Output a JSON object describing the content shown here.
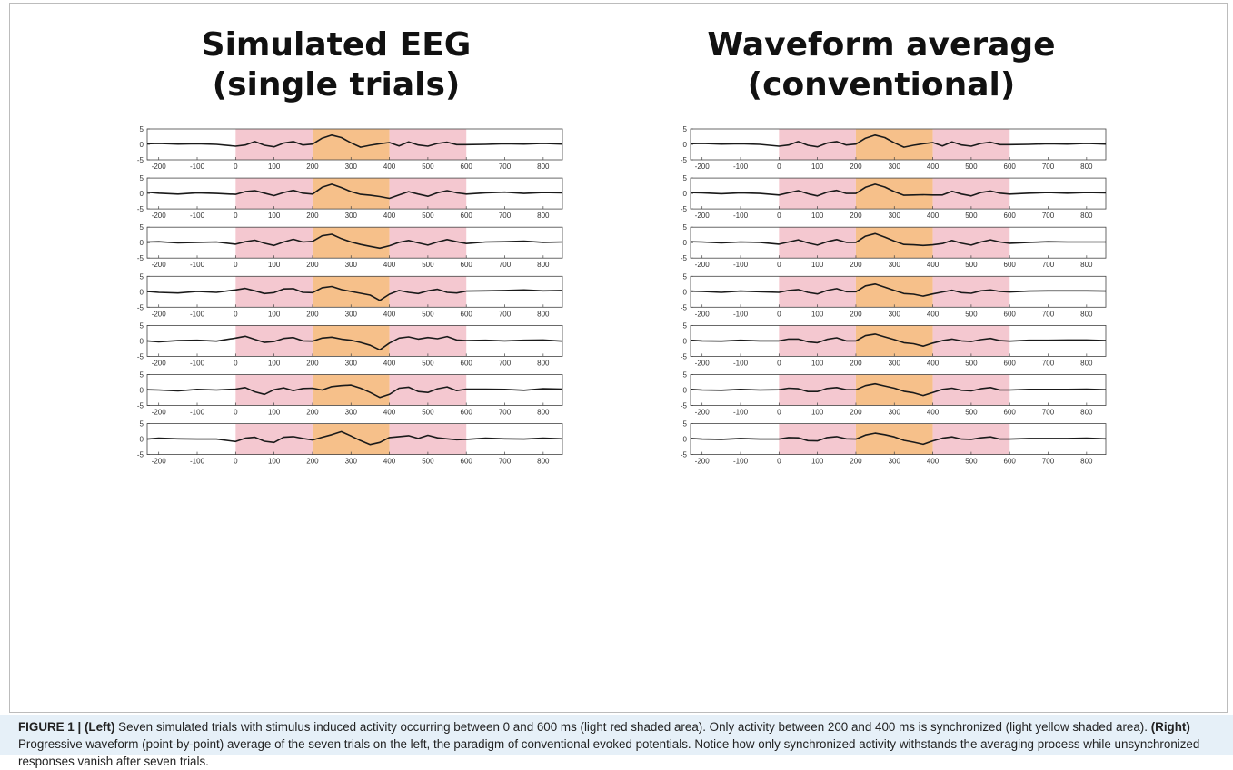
{
  "panels": [
    {
      "id": "left",
      "title_line1": "Simulated EEG",
      "title_line2": "(single trials)"
    },
    {
      "id": "right",
      "title_line1": "Waveform average",
      "title_line2": "(conventional)"
    }
  ],
  "chart_data": [
    {
      "type": "line",
      "title": "Simulated EEG (single trials)",
      "subplots": 7,
      "xlim": [
        -230,
        850
      ],
      "ylim": [
        -5,
        5
      ],
      "x_ticks": [
        -200,
        -100,
        0,
        100,
        200,
        300,
        400,
        500,
        600,
        700,
        800
      ],
      "y_ticks": [
        -5,
        0,
        5
      ],
      "shaded_regions": [
        {
          "from": 0,
          "to": 200,
          "color": "#f4c8d0"
        },
        {
          "from": 200,
          "to": 400,
          "color": "#f6c08a"
        },
        {
          "from": 400,
          "to": 600,
          "color": "#f4c8d0"
        }
      ],
      "x": [
        -230,
        -200,
        -150,
        -100,
        -50,
        0,
        25,
        50,
        75,
        100,
        125,
        150,
        175,
        200,
        225,
        250,
        275,
        300,
        325,
        350,
        375,
        400,
        425,
        450,
        475,
        500,
        525,
        550,
        575,
        600,
        650,
        700,
        750,
        800,
        850
      ],
      "series": [
        {
          "values": [
            0.2,
            0.3,
            0.1,
            0.2,
            0.0,
            -0.6,
            -0.2,
            0.9,
            -0.3,
            -0.8,
            0.4,
            0.9,
            -0.2,
            0.1,
            2.0,
            3.0,
            2.2,
            0.5,
            -0.9,
            -0.3,
            0.2,
            0.6,
            -0.5,
            0.8,
            -0.2,
            -0.6,
            0.3,
            0.7,
            -0.1,
            -0.1,
            0.0,
            0.2,
            0.1,
            0.3,
            0.1
          ]
        },
        {
          "values": [
            0.4,
            0.1,
            -0.2,
            0.2,
            0.0,
            -0.3,
            0.6,
            0.9,
            0.1,
            -0.7,
            0.3,
            1.0,
            0.1,
            -0.2,
            2.0,
            3.0,
            1.9,
            0.6,
            -0.3,
            -0.6,
            -1.0,
            -1.6,
            -0.5,
            0.6,
            -0.2,
            -0.9,
            0.2,
            0.9,
            0.2,
            -0.2,
            0.2,
            0.4,
            0.0,
            0.3,
            0.2
          ]
        },
        {
          "values": [
            0.2,
            0.3,
            -0.1,
            0.1,
            0.2,
            -0.5,
            0.3,
            0.8,
            -0.2,
            -0.9,
            0.2,
            1.1,
            0.2,
            0.4,
            2.2,
            2.7,
            1.3,
            0.2,
            -0.6,
            -1.2,
            -1.8,
            -1.0,
            0.1,
            0.7,
            -0.1,
            -0.8,
            0.2,
            1.0,
            0.3,
            -0.3,
            0.2,
            0.3,
            0.5,
            0.1,
            0.2
          ]
        },
        {
          "values": [
            0.1,
            -0.2,
            -0.4,
            0.1,
            -0.2,
            0.6,
            1.1,
            0.3,
            -0.6,
            -0.3,
            0.9,
            1.0,
            -0.2,
            -0.3,
            1.3,
            1.7,
            0.7,
            0.1,
            -0.5,
            -1.1,
            -2.8,
            -0.8,
            0.4,
            -0.2,
            -0.6,
            0.3,
            0.8,
            -0.2,
            -0.4,
            0.2,
            0.3,
            0.4,
            0.6,
            0.3,
            0.4
          ]
        },
        {
          "values": [
            0.0,
            -0.3,
            0.1,
            0.2,
            -0.1,
            0.9,
            1.5,
            0.5,
            -0.5,
            -0.2,
            0.8,
            1.1,
            0.0,
            -0.1,
            0.9,
            1.2,
            0.6,
            0.2,
            -0.5,
            -1.4,
            -2.9,
            -0.7,
            0.9,
            1.3,
            0.6,
            1.1,
            0.7,
            1.4,
            0.3,
            0.1,
            0.2,
            0.0,
            0.2,
            0.3,
            -0.1
          ]
        },
        {
          "values": [
            0.1,
            0.0,
            -0.3,
            0.2,
            0.0,
            0.3,
            0.8,
            -0.6,
            -1.4,
            0.1,
            0.7,
            -0.2,
            0.5,
            0.6,
            0.0,
            1.1,
            1.4,
            1.6,
            0.6,
            -0.8,
            -2.4,
            -1.4,
            0.6,
            0.9,
            -0.5,
            -0.8,
            0.4,
            1.0,
            -0.2,
            0.3,
            0.3,
            0.2,
            -0.1,
            0.4,
            0.3
          ]
        },
        {
          "values": [
            0.0,
            0.3,
            0.1,
            0.0,
            0.0,
            -0.8,
            0.3,
            0.6,
            -0.7,
            -1.1,
            0.6,
            0.8,
            0.2,
            -0.3,
            0.6,
            1.4,
            2.4,
            1.0,
            -0.5,
            -1.8,
            -1.1,
            0.5,
            0.8,
            1.1,
            0.2,
            1.2,
            0.4,
            0.1,
            -0.2,
            -0.1,
            0.3,
            0.1,
            0.0,
            0.3,
            0.1
          ]
        }
      ]
    },
    {
      "type": "line",
      "title": "Waveform average (conventional)",
      "subplots": 7,
      "xlim": [
        -230,
        850
      ],
      "ylim": [
        -5,
        5
      ],
      "x_ticks": [
        -200,
        -100,
        0,
        100,
        200,
        300,
        400,
        500,
        600,
        700,
        800
      ],
      "y_ticks": [
        -5,
        0,
        5
      ],
      "shaded_regions": [
        {
          "from": 0,
          "to": 200,
          "color": "#f4c8d0"
        },
        {
          "from": 200,
          "to": 400,
          "color": "#f6c08a"
        },
        {
          "from": 400,
          "to": 600,
          "color": "#f4c8d0"
        }
      ],
      "x": [
        -230,
        -200,
        -150,
        -100,
        -50,
        0,
        25,
        50,
        75,
        100,
        125,
        150,
        175,
        200,
        225,
        250,
        275,
        300,
        325,
        350,
        375,
        400,
        425,
        450,
        475,
        500,
        525,
        550,
        575,
        600,
        650,
        700,
        750,
        800,
        850
      ],
      "series": [
        {
          "values": [
            0.2,
            0.3,
            0.1,
            0.2,
            0.0,
            -0.6,
            -0.2,
            0.9,
            -0.3,
            -0.8,
            0.4,
            0.9,
            -0.2,
            0.1,
            2.0,
            3.0,
            2.2,
            0.5,
            -0.9,
            -0.3,
            0.2,
            0.6,
            -0.5,
            0.8,
            -0.2,
            -0.6,
            0.3,
            0.7,
            -0.1,
            -0.1,
            0.0,
            0.2,
            0.1,
            0.3,
            0.1
          ]
        },
        {
          "values": [
            0.3,
            0.2,
            -0.1,
            0.2,
            0.0,
            -0.5,
            0.2,
            0.9,
            -0.1,
            -0.8,
            0.4,
            1.0,
            0.0,
            0.0,
            2.0,
            3.0,
            2.1,
            0.6,
            -0.6,
            -0.5,
            -0.4,
            -0.5,
            -0.5,
            0.7,
            -0.2,
            -0.8,
            0.3,
            0.8,
            0.1,
            -0.2,
            0.1,
            0.3,
            0.1,
            0.3,
            0.2
          ]
        },
        {
          "values": [
            0.3,
            0.2,
            -0.1,
            0.2,
            0.1,
            -0.5,
            0.2,
            0.9,
            -0.1,
            -0.8,
            0.3,
            1.0,
            0.1,
            0.1,
            2.1,
            2.9,
            1.8,
            0.5,
            -0.6,
            -0.7,
            -0.9,
            -0.7,
            -0.3,
            0.7,
            -0.2,
            -0.8,
            0.2,
            0.9,
            0.2,
            -0.2,
            0.1,
            0.3,
            0.2,
            0.2,
            0.2
          ]
        },
        {
          "values": [
            0.2,
            0.1,
            -0.2,
            0.2,
            0.0,
            -0.2,
            0.4,
            0.7,
            -0.2,
            -0.7,
            0.4,
            1.0,
            0.0,
            0.0,
            1.9,
            2.5,
            1.5,
            0.4,
            -0.6,
            -0.8,
            -1.4,
            -0.7,
            -0.1,
            0.5,
            -0.3,
            -0.5,
            0.3,
            0.6,
            0.1,
            -0.1,
            0.2,
            0.3,
            0.3,
            0.3,
            0.2
          ]
        },
        {
          "values": [
            0.2,
            0.0,
            -0.1,
            0.2,
            0.0,
            0.0,
            0.6,
            0.6,
            -0.3,
            -0.6,
            0.5,
            1.0,
            0.0,
            0.0,
            1.7,
            2.2,
            1.3,
            0.4,
            -0.6,
            -0.9,
            -1.7,
            -0.7,
            0.1,
            0.6,
            0.0,
            -0.2,
            0.4,
            0.8,
            0.1,
            -0.1,
            0.2,
            0.2,
            0.3,
            0.3,
            0.1
          ]
        },
        {
          "values": [
            0.2,
            0.0,
            -0.1,
            0.2,
            0.0,
            0.1,
            0.6,
            0.4,
            -0.5,
            -0.5,
            0.5,
            0.8,
            0.1,
            0.1,
            1.4,
            2.0,
            1.3,
            0.6,
            -0.4,
            -0.9,
            -1.8,
            -0.8,
            0.2,
            0.6,
            -0.1,
            -0.3,
            0.4,
            0.8,
            0.0,
            0.0,
            0.2,
            0.2,
            0.2,
            0.3,
            0.1
          ]
        },
        {
          "values": [
            0.2,
            0.0,
            -0.1,
            0.2,
            0.0,
            0.0,
            0.5,
            0.4,
            -0.5,
            -0.6,
            0.5,
            0.8,
            0.1,
            0.0,
            1.3,
            1.9,
            1.4,
            0.7,
            -0.4,
            -1.0,
            -1.7,
            -0.6,
            0.3,
            0.7,
            0.0,
            -0.1,
            0.4,
            0.7,
            0.0,
            0.0,
            0.2,
            0.2,
            0.2,
            0.3,
            0.1
          ]
        }
      ]
    }
  ],
  "caption": {
    "label": "FIGURE 1 | ",
    "left_tag": "(Left)",
    "text1": " Seven simulated trials with stimulus induced activity occurring between 0 and 600 ms (light red shaded area). Only activity between 200 and 400 ms is synchronized (light yellow shaded area). ",
    "right_tag": "(Right)",
    "text2": " Progressive waveform (point-by-point) average of the seven trials on the left, the paradigm of conventional evoked potentials. Notice how only synchronized activity withstands the averaging process while unsynchronized responses vanish after seven trials."
  }
}
